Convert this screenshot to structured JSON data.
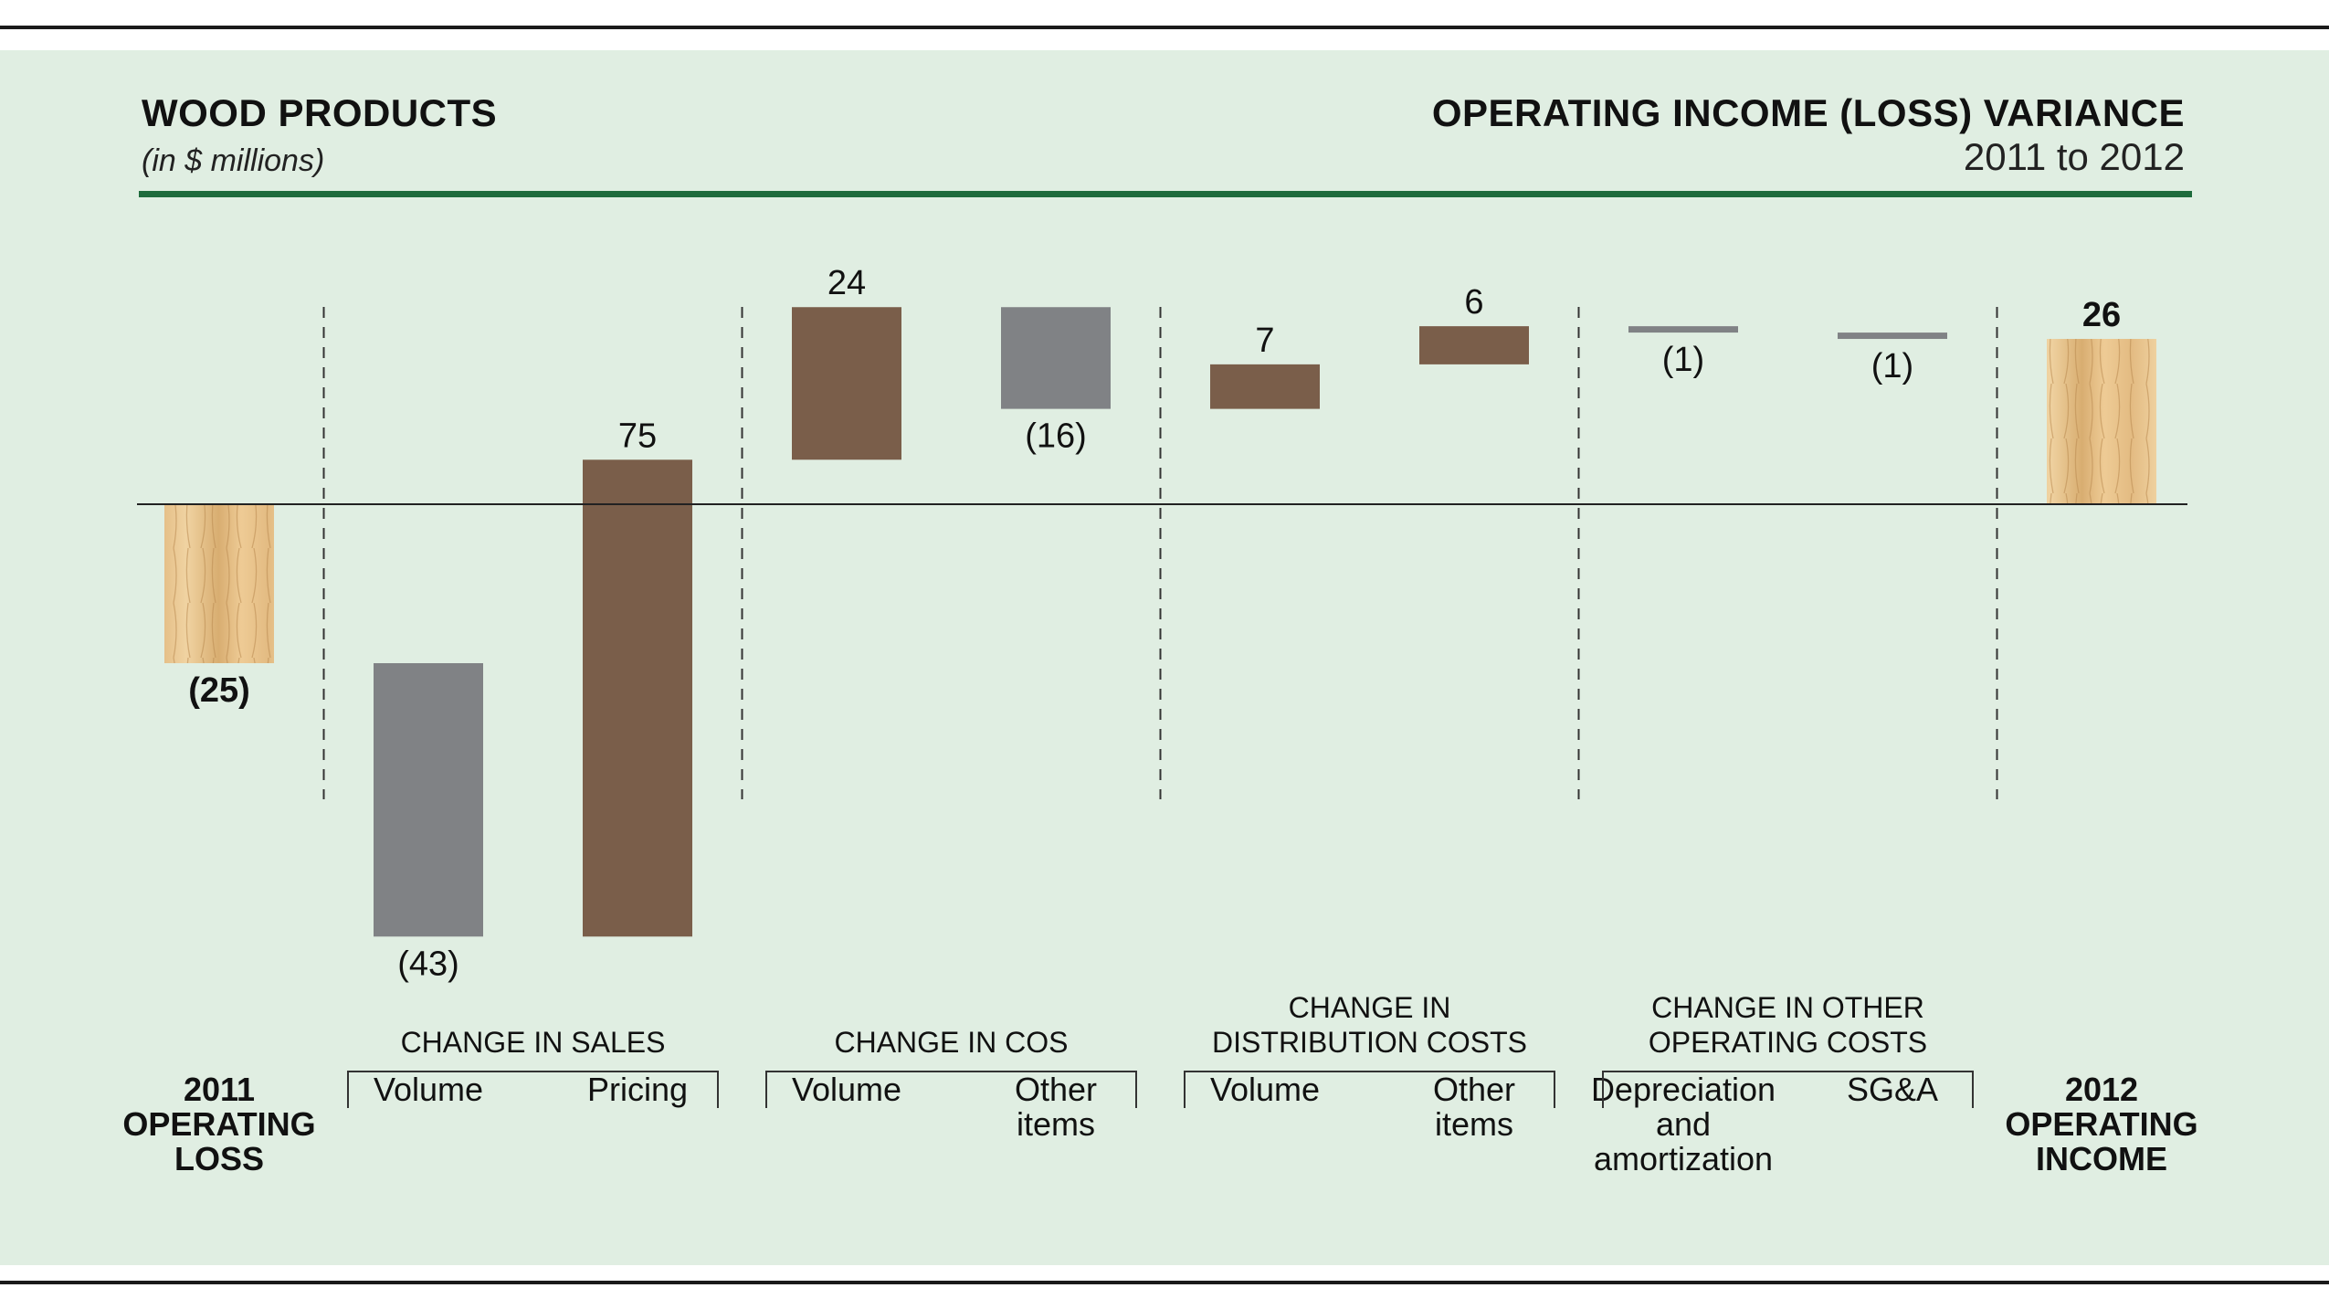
{
  "header": {
    "title": "WOOD PRODUCTS",
    "units": "(in $ millions)",
    "right_title": "OPERATING INCOME (LOSS) VARIANCE",
    "right_subtitle": "2011 to 2012"
  },
  "colors": {
    "panel_bg": "#e0eee2",
    "green_rule": "#1e6b3c",
    "increase": "#7a5e4a",
    "decrease": "#808285",
    "total_wood": "#e3bc86"
  },
  "chart_data": {
    "type": "waterfall",
    "ylim": [
      -70,
      60
    ],
    "bars": [
      {
        "label_lines": [
          "2011",
          "OPERATING",
          "LOSS"
        ],
        "value": -25,
        "label": "(25)",
        "kind": "total",
        "bold": true
      },
      {
        "label_lines": [
          "Volume"
        ],
        "value": -43,
        "label": "(43)",
        "kind": "decrease",
        "group": 0
      },
      {
        "label_lines": [
          "Pricing"
        ],
        "value": 75,
        "label": "75",
        "kind": "increase",
        "group": 0
      },
      {
        "label_lines": [
          "Volume"
        ],
        "value": 24,
        "label": "24",
        "kind": "increase",
        "group": 1
      },
      {
        "label_lines": [
          "Other",
          "items"
        ],
        "value": -16,
        "label": "(16)",
        "kind": "decrease",
        "group": 1
      },
      {
        "label_lines": [
          "Volume"
        ],
        "value": 7,
        "label": "7",
        "kind": "increase",
        "group": 2
      },
      {
        "label_lines": [
          "Other",
          "items"
        ],
        "value": 6,
        "label": "6",
        "kind": "increase",
        "group": 2
      },
      {
        "label_lines": [
          "Depreciation",
          "and",
          "amortization"
        ],
        "value": -1,
        "label": "(1)",
        "kind": "decrease",
        "group": 3
      },
      {
        "label_lines": [
          "SG&A"
        ],
        "value": -1,
        "label": "(1)",
        "kind": "decrease",
        "group": 3
      },
      {
        "label_lines": [
          "2012",
          "OPERATING",
          "INCOME"
        ],
        "value": 26,
        "label": "26",
        "kind": "total",
        "bold": true
      }
    ],
    "groups": [
      {
        "label_lines": [
          "CHANGE IN SALES"
        ]
      },
      {
        "label_lines": [
          "CHANGE IN COS"
        ]
      },
      {
        "label_lines": [
          "CHANGE IN",
          "DISTRIBUTION COSTS"
        ]
      },
      {
        "label_lines": [
          "CHANGE IN OTHER",
          "OPERATING COSTS"
        ]
      }
    ]
  }
}
